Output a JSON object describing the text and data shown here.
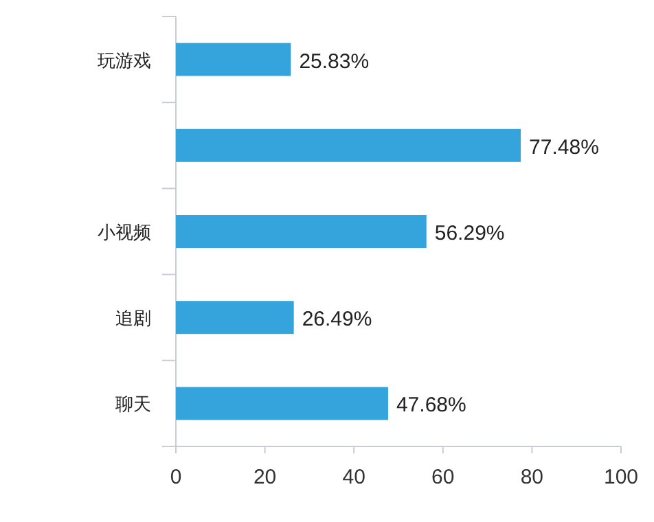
{
  "chart_data": {
    "type": "bar",
    "orientation": "horizontal",
    "categories": [
      "玩游戏",
      null,
      "小视频",
      "追剧",
      "聊天"
    ],
    "values": [
      25.83,
      77.48,
      56.29,
      26.49,
      47.68
    ],
    "value_labels": [
      "25.83%",
      "77.48%",
      "56.29%",
      "26.49%",
      "47.68%"
    ],
    "color": "#35a4dc",
    "xlim": [
      0,
      100
    ],
    "xticks": [
      0,
      20,
      40,
      60,
      80,
      100
    ],
    "grid": false
  }
}
